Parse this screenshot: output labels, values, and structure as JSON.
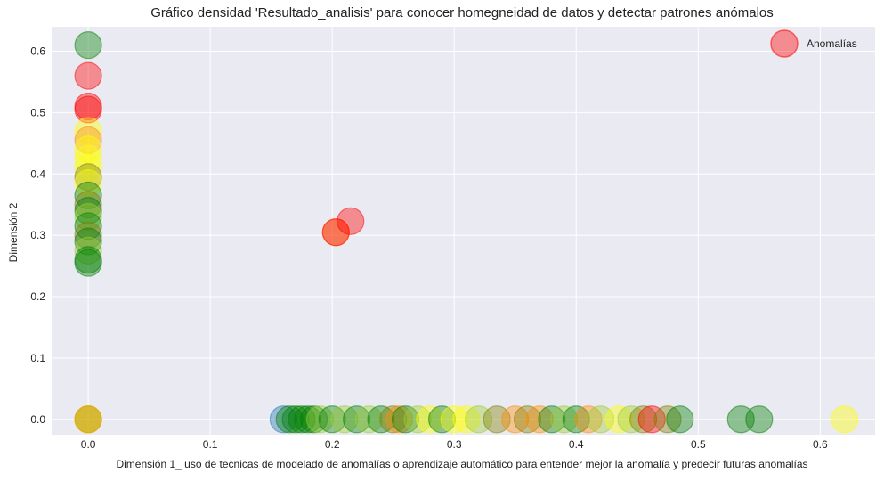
{
  "chart_data": {
    "type": "scatter",
    "title": "Gráfico densidad 'Resultado_analisis' para conocer homegneidad de datos y detectar patrones anómalos",
    "xlabel": "Dimensión 1_ uso de tecnicas de modelado de anomalías o aprendizaje automático para entender mejor la anomalía y predecir futuras anomalías",
    "ylabel": "Dimensión 2",
    "xlim": [
      -0.03,
      0.645
    ],
    "ylim": [
      -0.025,
      0.64
    ],
    "xticks": [
      0.0,
      0.1,
      0.2,
      0.3,
      0.4,
      0.5,
      0.6
    ],
    "xtick_labels": [
      "0.0",
      "0.1",
      "0.2",
      "0.3",
      "0.4",
      "0.5",
      "0.6"
    ],
    "yticks": [
      0.0,
      0.1,
      0.2,
      0.3,
      0.4,
      0.5,
      0.6
    ],
    "ytick_labels": [
      "0.0",
      "0.1",
      "0.2",
      "0.3",
      "0.4",
      "0.5",
      "0.6"
    ],
    "grid": true,
    "legend": {
      "entries": [
        {
          "label": "Anomalías",
          "color": "#ff0000"
        }
      ],
      "position": "top-right"
    },
    "colors": {
      "green": "#008000",
      "yellow": "#ffff00",
      "yellowgreen": "#9acd32",
      "olive": "#808000",
      "orange": "#ff8c00",
      "red": "#ff0000",
      "blue": "#1f77b4"
    },
    "points": [
      {
        "x": 0,
        "y": 0.61,
        "c": "green"
      },
      {
        "x": 0,
        "y": 0.56,
        "c": "red"
      },
      {
        "x": 0,
        "y": 0.51,
        "c": "red"
      },
      {
        "x": 0,
        "y": 0.505,
        "c": "red"
      },
      {
        "x": 0,
        "y": 0.47,
        "c": "yellow"
      },
      {
        "x": 0,
        "y": 0.455,
        "c": "orange"
      },
      {
        "x": 0,
        "y": 0.44,
        "c": "yellow"
      },
      {
        "x": 0,
        "y": 0.425,
        "c": "yellow"
      },
      {
        "x": 0,
        "y": 0.41,
        "c": "yellow"
      },
      {
        "x": 0,
        "y": 0.395,
        "c": "olive"
      },
      {
        "x": 0,
        "y": 0.385,
        "c": "yellow"
      },
      {
        "x": 0,
        "y": 0.365,
        "c": "green"
      },
      {
        "x": 0,
        "y": 0.35,
        "c": "olive"
      },
      {
        "x": 0,
        "y": 0.34,
        "c": "green"
      },
      {
        "x": 0,
        "y": 0.33,
        "c": "yellowgreen"
      },
      {
        "x": 0,
        "y": 0.315,
        "c": "green"
      },
      {
        "x": 0,
        "y": 0.3,
        "c": "olive"
      },
      {
        "x": 0,
        "y": 0.29,
        "c": "green"
      },
      {
        "x": 0,
        "y": 0.275,
        "c": "yellowgreen"
      },
      {
        "x": 0,
        "y": 0.26,
        "c": "green"
      },
      {
        "x": 0,
        "y": 0.255,
        "c": "green"
      },
      {
        "x": 0,
        "y": 0,
        "c": "green"
      },
      {
        "x": 0,
        "y": 0,
        "c": "yellow"
      },
      {
        "x": 0,
        "y": 0,
        "c": "orange"
      },
      {
        "x": 0.203,
        "y": 0.305,
        "c": "orange"
      },
      {
        "x": 0.203,
        "y": 0.305,
        "c": "red"
      },
      {
        "x": 0.215,
        "y": 0.323,
        "c": "red"
      },
      {
        "x": 0.16,
        "y": 0,
        "c": "blue"
      },
      {
        "x": 0.165,
        "y": 0,
        "c": "green"
      },
      {
        "x": 0.17,
        "y": 0,
        "c": "green"
      },
      {
        "x": 0.175,
        "y": 0,
        "c": "green"
      },
      {
        "x": 0.18,
        "y": 0,
        "c": "green"
      },
      {
        "x": 0.185,
        "y": 0,
        "c": "green"
      },
      {
        "x": 0.19,
        "y": 0,
        "c": "yellowgreen"
      },
      {
        "x": 0.2,
        "y": 0,
        "c": "green"
      },
      {
        "x": 0.21,
        "y": 0,
        "c": "yellowgreen"
      },
      {
        "x": 0.22,
        "y": 0,
        "c": "green"
      },
      {
        "x": 0.23,
        "y": 0,
        "c": "yellowgreen"
      },
      {
        "x": 0.24,
        "y": 0,
        "c": "green"
      },
      {
        "x": 0.25,
        "y": 0,
        "c": "olive"
      },
      {
        "x": 0.255,
        "y": 0,
        "c": "orange"
      },
      {
        "x": 0.26,
        "y": 0,
        "c": "green"
      },
      {
        "x": 0.27,
        "y": 0,
        "c": "yellowgreen"
      },
      {
        "x": 0.28,
        "y": 0,
        "c": "yellow"
      },
      {
        "x": 0.29,
        "y": 0,
        "c": "green"
      },
      {
        "x": 0.3,
        "y": 0,
        "c": "yellow"
      },
      {
        "x": 0.31,
        "y": 0,
        "c": "yellow"
      },
      {
        "x": 0.32,
        "y": 0,
        "c": "yellowgreen"
      },
      {
        "x": 0.335,
        "y": 0,
        "c": "olive"
      },
      {
        "x": 0.35,
        "y": 0,
        "c": "orange"
      },
      {
        "x": 0.36,
        "y": 0,
        "c": "olive"
      },
      {
        "x": 0.37,
        "y": 0,
        "c": "orange"
      },
      {
        "x": 0.38,
        "y": 0,
        "c": "green"
      },
      {
        "x": 0.39,
        "y": 0,
        "c": "yellowgreen"
      },
      {
        "x": 0.4,
        "y": 0,
        "c": "green"
      },
      {
        "x": 0.41,
        "y": 0,
        "c": "orange"
      },
      {
        "x": 0.42,
        "y": 0,
        "c": "yellowgreen"
      },
      {
        "x": 0.435,
        "y": 0,
        "c": "yellow"
      },
      {
        "x": 0.445,
        "y": 0,
        "c": "yellowgreen"
      },
      {
        "x": 0.455,
        "y": 0,
        "c": "olive"
      },
      {
        "x": 0.462,
        "y": 0,
        "c": "red"
      },
      {
        "x": 0.475,
        "y": 0,
        "c": "olive"
      },
      {
        "x": 0.485,
        "y": 0,
        "c": "green"
      },
      {
        "x": 0.535,
        "y": 0,
        "c": "green"
      },
      {
        "x": 0.55,
        "y": 0,
        "c": "green"
      },
      {
        "x": 0.62,
        "y": 0,
        "c": "yellow"
      }
    ]
  }
}
